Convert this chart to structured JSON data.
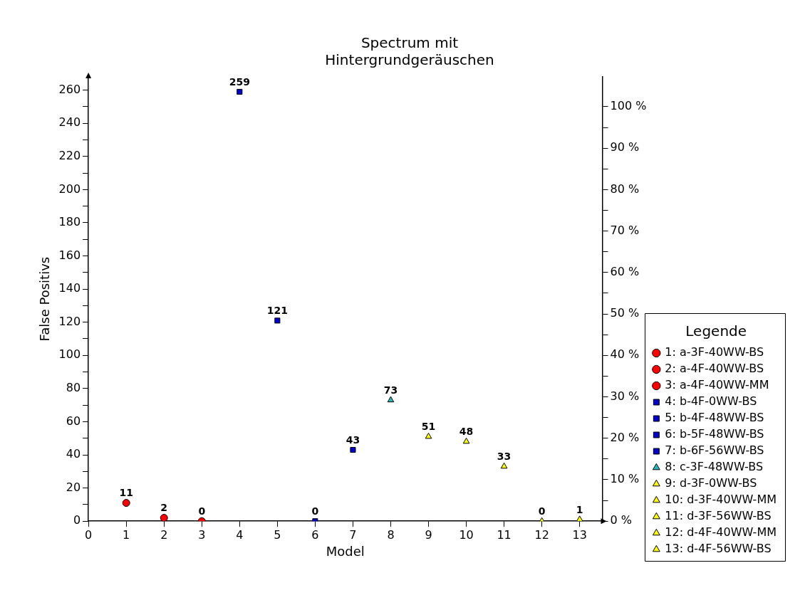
{
  "chart_data": {
    "type": "scatter",
    "title": "Spectrum mit Hintergrundgeräuschen",
    "xlabel": "Model",
    "ylabel": "False Positivs",
    "legend_title": "Legende",
    "legend": "right",
    "data_labels": true,
    "grid": false,
    "xlim": [
      0,
      13.6
    ],
    "xticks": [
      0,
      1,
      2,
      3,
      4,
      5,
      6,
      7,
      8,
      9,
      10,
      11,
      12,
      13
    ],
    "ylim": [
      0,
      268
    ],
    "yticks": [
      0,
      {
        "value": 10,
        "label": null
      },
      20,
      {
        "value": 30,
        "label": null
      },
      40,
      {
        "value": 50,
        "label": null
      },
      60,
      {
        "value": 70,
        "label": null
      },
      80,
      {
        "value": 90,
        "label": null
      },
      100,
      {
        "value": 110,
        "label": null
      },
      120,
      {
        "value": 130,
        "label": null
      },
      140,
      {
        "value": 150,
        "label": null
      },
      160,
      {
        "value": 170,
        "label": null
      },
      180,
      {
        "value": 190,
        "label": null
      },
      200,
      {
        "value": 210,
        "label": null
      },
      220,
      {
        "value": 230,
        "label": null
      },
      240,
      {
        "value": 250,
        "label": null
      },
      260
    ],
    "y2lim": [
      0,
      107.2
    ],
    "y2ticks": [
      {
        "value": 0,
        "label": "0 %"
      },
      {
        "value": 5,
        "label": null
      },
      {
        "value": 10,
        "label": "10 %"
      },
      {
        "value": 15,
        "label": null
      },
      {
        "value": 20,
        "label": "20 %"
      },
      {
        "value": 25,
        "label": null
      },
      {
        "value": 30,
        "label": "30 %"
      },
      {
        "value": 35,
        "label": null
      },
      {
        "value": 40,
        "label": "40 %"
      },
      {
        "value": 45,
        "label": null
      },
      {
        "value": 50,
        "label": "50 %"
      },
      {
        "value": 55,
        "label": null
      },
      {
        "value": 60,
        "label": "60 %"
      },
      {
        "value": 65,
        "label": null
      },
      {
        "value": 70,
        "label": "70 %"
      },
      {
        "value": 75,
        "label": null
      },
      {
        "value": 80,
        "label": "80 %"
      },
      {
        "value": 85,
        "label": null
      },
      {
        "value": 90,
        "label": "90 %"
      },
      {
        "value": 95,
        "label": null
      },
      {
        "value": 100,
        "label": "100 %"
      }
    ],
    "series": [
      {
        "name": "1: a-3F-40WW-BS",
        "color": "#ff0000",
        "marker": "circle",
        "x": [
          1
        ],
        "values": [
          11
        ]
      },
      {
        "name": "2: a-4F-40WW-BS",
        "color": "#ff0000",
        "marker": "circle",
        "x": [
          2
        ],
        "values": [
          2
        ]
      },
      {
        "name": "3: a-4F-40WW-MM",
        "color": "#ff0000",
        "marker": "circle",
        "x": [
          3
        ],
        "values": [
          0
        ]
      },
      {
        "name": "4: b-4F-0WW-BS",
        "color": "#0000cc",
        "marker": "square",
        "x": [
          4
        ],
        "values": [
          259
        ]
      },
      {
        "name": "5: b-4F-48WW-BS",
        "color": "#0000cc",
        "marker": "square",
        "x": [
          5
        ],
        "values": [
          121
        ]
      },
      {
        "name": "6: b-5F-48WW-BS",
        "color": "#0000cc",
        "marker": "square",
        "x": [
          6
        ],
        "values": [
          0
        ]
      },
      {
        "name": "7: b-6F-56WW-BS",
        "color": "#0000cc",
        "marker": "square",
        "x": [
          7
        ],
        "values": [
          43
        ]
      },
      {
        "name": "8: c-3F-48WW-BS",
        "color": "#22bbbb",
        "marker": "triangle",
        "x": [
          8
        ],
        "values": [
          73
        ]
      },
      {
        "name": "9: d-3F-0WW-BS",
        "color": "#ffff00",
        "marker": "triangle",
        "x": [
          9
        ],
        "values": [
          51
        ]
      },
      {
        "name": "10: d-3F-40WW-MM",
        "color": "#ffff00",
        "marker": "triangle",
        "x": [
          10
        ],
        "values": [
          48
        ]
      },
      {
        "name": "11: d-3F-56WW-BS",
        "color": "#ffff00",
        "marker": "triangle",
        "x": [
          11
        ],
        "values": [
          33
        ]
      },
      {
        "name": "12: d-4F-40WW-MM",
        "color": "#ffff00",
        "marker": "triangle",
        "x": [
          12
        ],
        "values": [
          0
        ]
      },
      {
        "name": "13: d-4F-56WW-BS",
        "color": "#ffff00",
        "marker": "triangle",
        "x": [
          13
        ],
        "values": [
          1
        ]
      }
    ]
  }
}
